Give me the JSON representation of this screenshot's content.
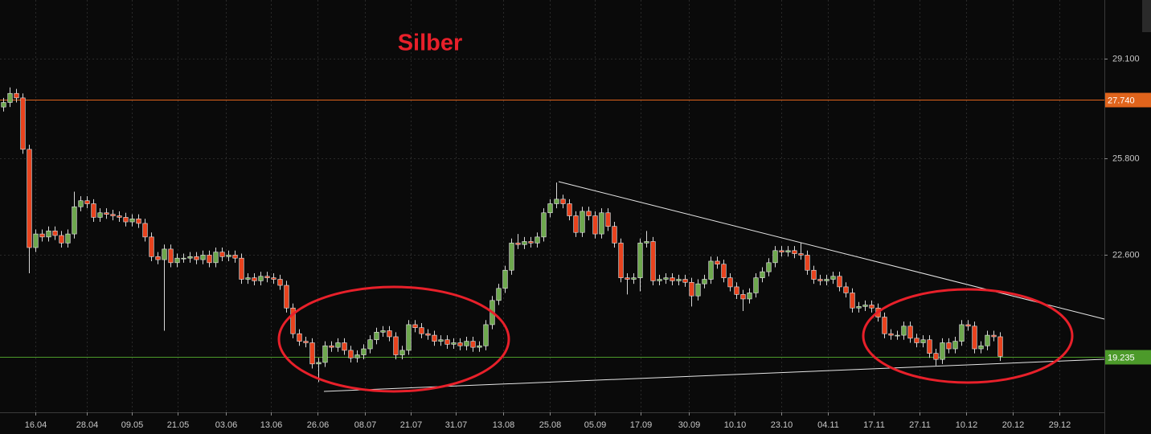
{
  "chart_data": {
    "type": "candlestick",
    "title": "Silber",
    "open": [
      27.5,
      27.65,
      27.95,
      27.8,
      26.1,
      22.85,
      23.3,
      23.2,
      23.4,
      23.25,
      23.0,
      23.3,
      24.2,
      24.4,
      24.3,
      23.85,
      24.0,
      23.95,
      23.9,
      23.85,
      23.7,
      23.8,
      23.65,
      23.2,
      22.55,
      22.45,
      22.8,
      22.35,
      22.5,
      22.5,
      22.55,
      22.45,
      22.6,
      22.35,
      22.7,
      22.55,
      22.6,
      22.5,
      21.8,
      21.85,
      21.75,
      21.9,
      21.85,
      21.8,
      21.6,
      20.85,
      20.0,
      19.75,
      19.7,
      19.0,
      19.05,
      19.6,
      19.55,
      19.7,
      19.45,
      19.2,
      19.3,
      19.5,
      19.8,
      20.05,
      20.1,
      19.9,
      19.3,
      19.45,
      20.3,
      20.2,
      20.0,
      19.95,
      19.75,
      19.8,
      19.65,
      19.7,
      19.6,
      19.75,
      19.55,
      19.6,
      20.3,
      21.1,
      21.5,
      22.1,
      23.0,
      22.95,
      23.05,
      23.0,
      23.2,
      24.0,
      24.3,
      24.45,
      24.3,
      23.9,
      23.35,
      24.05,
      23.9,
      23.3,
      24.0,
      23.55,
      23.0,
      21.85,
      21.8,
      21.85,
      23.0,
      23.05,
      21.75,
      21.8,
      21.85,
      21.75,
      21.8,
      21.7,
      21.25,
      21.65,
      21.8,
      22.4,
      22.3,
      21.85,
      21.55,
      21.3,
      21.15,
      21.35,
      21.85,
      22.05,
      22.35,
      22.75,
      22.7,
      22.75,
      22.65,
      22.6,
      22.1,
      21.8,
      21.75,
      21.8,
      21.9,
      21.55,
      21.35,
      20.85,
      20.9,
      20.95,
      20.85,
      20.55,
      20.0,
      19.95,
      19.95,
      20.25,
      19.85,
      19.7,
      19.8,
      19.35,
      19.15,
      19.7,
      19.5,
      19.75,
      20.3,
      20.25,
      19.5,
      19.6,
      19.95,
      19.9
    ],
    "high": [
      27.8,
      28.15,
      28.1,
      27.95,
      26.25,
      23.45,
      23.45,
      23.55,
      23.55,
      23.4,
      23.45,
      24.7,
      24.55,
      24.55,
      24.45,
      24.15,
      24.15,
      24.1,
      24.05,
      24.0,
      23.95,
      23.95,
      23.8,
      23.35,
      22.7,
      22.95,
      22.95,
      22.65,
      22.65,
      22.7,
      22.7,
      22.75,
      22.75,
      22.85,
      22.85,
      22.75,
      22.75,
      22.65,
      22.0,
      22.0,
      22.05,
      22.05,
      22.0,
      21.95,
      21.75,
      21.0,
      20.15,
      19.9,
      19.85,
      19.2,
      19.75,
      19.75,
      19.85,
      19.85,
      19.6,
      19.45,
      19.65,
      19.95,
      20.2,
      20.25,
      20.25,
      20.05,
      19.6,
      20.45,
      20.45,
      20.35,
      20.15,
      20.1,
      19.95,
      19.95,
      19.85,
      19.85,
      19.9,
      19.9,
      19.75,
      20.45,
      21.25,
      21.65,
      22.25,
      23.15,
      23.3,
      23.2,
      23.2,
      23.35,
      24.15,
      24.45,
      25.0,
      24.6,
      24.45,
      24.05,
      24.2,
      24.2,
      24.05,
      24.15,
      24.15,
      23.7,
      23.15,
      22.0,
      22.0,
      23.15,
      23.4,
      23.2,
      21.95,
      22.0,
      22.0,
      21.95,
      21.95,
      21.85,
      21.8,
      21.95,
      22.55,
      22.55,
      22.45,
      22.0,
      21.7,
      21.45,
      21.5,
      22.0,
      22.2,
      22.5,
      22.9,
      22.9,
      22.9,
      22.9,
      23.0,
      22.75,
      22.25,
      21.95,
      21.95,
      22.05,
      22.05,
      21.7,
      21.5,
      21.05,
      21.1,
      21.1,
      21.0,
      20.7,
      20.15,
      20.1,
      20.4,
      20.4,
      20.0,
      19.95,
      19.95,
      19.5,
      19.85,
      19.85,
      19.9,
      20.45,
      20.45,
      20.4,
      19.75,
      20.1,
      20.1,
      20.05
    ],
    "low": [
      27.35,
      27.5,
      27.65,
      25.95,
      22.0,
      22.7,
      23.05,
      23.05,
      23.1,
      22.85,
      22.85,
      23.15,
      24.05,
      24.15,
      23.7,
      23.7,
      23.8,
      23.75,
      23.7,
      23.55,
      23.55,
      23.5,
      23.05,
      22.4,
      22.3,
      20.1,
      22.2,
      22.2,
      22.35,
      22.35,
      22.3,
      22.3,
      22.2,
      22.2,
      22.4,
      22.4,
      22.35,
      21.65,
      21.65,
      21.6,
      21.6,
      21.7,
      21.65,
      21.45,
      20.7,
      19.85,
      19.6,
      19.55,
      18.85,
      18.4,
      18.9,
      19.4,
      19.4,
      19.3,
      19.05,
      19.05,
      19.15,
      19.35,
      19.65,
      19.9,
      19.75,
      19.15,
      19.15,
      19.3,
      20.05,
      19.85,
      19.8,
      19.6,
      19.6,
      19.5,
      19.5,
      19.45,
      19.45,
      19.4,
      19.4,
      19.45,
      20.15,
      20.95,
      21.35,
      21.95,
      22.8,
      22.8,
      22.85,
      22.85,
      23.05,
      23.85,
      24.15,
      24.15,
      23.75,
      23.2,
      23.2,
      23.75,
      23.15,
      23.15,
      23.4,
      22.85,
      21.7,
      21.3,
      21.65,
      21.4,
      22.85,
      21.6,
      21.6,
      21.65,
      21.6,
      21.6,
      21.55,
      20.9,
      21.1,
      21.5,
      21.65,
      22.15,
      21.7,
      21.4,
      21.15,
      20.75,
      21.0,
      21.2,
      21.7,
      21.9,
      22.2,
      22.55,
      22.55,
      22.5,
      22.45,
      21.95,
      21.65,
      21.6,
      21.6,
      21.65,
      21.4,
      21.2,
      20.7,
      20.7,
      20.75,
      20.7,
      20.4,
      19.85,
      19.8,
      19.8,
      19.8,
      19.7,
      19.55,
      19.55,
      19.2,
      18.95,
      19.0,
      19.35,
      19.35,
      19.6,
      20.1,
      19.35,
      19.35,
      19.45,
      19.75,
      19.1
    ],
    "close": [
      27.65,
      27.95,
      27.8,
      26.1,
      22.85,
      23.3,
      23.2,
      23.4,
      23.25,
      23.0,
      23.3,
      24.2,
      24.4,
      24.3,
      23.85,
      24.0,
      23.95,
      23.9,
      23.85,
      23.7,
      23.8,
      23.65,
      23.2,
      22.55,
      22.45,
      22.8,
      22.35,
      22.5,
      22.5,
      22.55,
      22.45,
      22.6,
      22.35,
      22.7,
      22.55,
      22.6,
      22.5,
      21.8,
      21.85,
      21.75,
      21.9,
      21.85,
      21.8,
      21.6,
      20.85,
      20.0,
      19.75,
      19.7,
      19.0,
      19.05,
      19.6,
      19.55,
      19.7,
      19.45,
      19.2,
      19.3,
      19.5,
      19.8,
      20.05,
      20.1,
      19.9,
      19.3,
      19.45,
      20.3,
      20.2,
      20.0,
      19.95,
      19.75,
      19.8,
      19.65,
      19.7,
      19.6,
      19.75,
      19.55,
      19.6,
      20.3,
      21.1,
      21.5,
      22.1,
      23.0,
      22.95,
      23.05,
      23.0,
      23.2,
      24.0,
      24.3,
      24.45,
      24.3,
      23.9,
      23.35,
      24.05,
      23.9,
      23.3,
      24.0,
      23.55,
      23.0,
      21.85,
      21.8,
      21.85,
      23.0,
      23.05,
      21.75,
      21.8,
      21.85,
      21.75,
      21.8,
      21.7,
      21.25,
      21.65,
      21.8,
      22.4,
      22.3,
      21.85,
      21.55,
      21.3,
      21.15,
      21.35,
      21.85,
      22.05,
      22.35,
      22.75,
      22.7,
      22.75,
      22.65,
      22.6,
      22.1,
      21.8,
      21.75,
      21.8,
      21.9,
      21.55,
      21.35,
      20.85,
      20.9,
      20.95,
      20.85,
      20.55,
      20.0,
      19.95,
      19.95,
      20.25,
      19.85,
      19.7,
      19.8,
      19.35,
      19.15,
      19.7,
      19.5,
      19.75,
      20.3,
      20.25,
      19.5,
      19.6,
      19.95,
      19.9,
      19.25
    ],
    "up_color": "#6ea84e",
    "down_color": "#e8431e",
    "ylim": [
      17.4,
      31.04
    ],
    "yticks": [
      {
        "value": 22.6,
        "label": "22.600"
      },
      {
        "value": 25.8,
        "label": "25.800"
      },
      {
        "value": 29.1,
        "label": "29.100"
      }
    ],
    "xlim": [
      -0.5,
      171.25
    ],
    "xticks": [
      {
        "value": 5,
        "label": "16.04"
      },
      {
        "value": 13,
        "label": "28.04"
      },
      {
        "value": 20,
        "label": "09.05"
      },
      {
        "value": 27.125,
        "label": "21.05"
      },
      {
        "value": 34.625,
        "label": "03.06"
      },
      {
        "value": 41.625,
        "label": "13.06"
      },
      {
        "value": 48.875,
        "label": "26.06"
      },
      {
        "value": 56.25,
        "label": "08.07"
      },
      {
        "value": 63.375,
        "label": "21.07"
      },
      {
        "value": 70.375,
        "label": "31.07"
      },
      {
        "value": 77.75,
        "label": "13.08"
      },
      {
        "value": 85,
        "label": "25.08"
      },
      {
        "value": 92,
        "label": "05.09"
      },
      {
        "value": 99.125,
        "label": "17.09"
      },
      {
        "value": 106.625,
        "label": "30.09"
      },
      {
        "value": 113.75,
        "label": "10.10"
      },
      {
        "value": 121,
        "label": "23.10"
      },
      {
        "value": 128.25,
        "label": "04.11"
      },
      {
        "value": 135.375,
        "label": "17.11"
      },
      {
        "value": 142.5,
        "label": "27.11"
      },
      {
        "value": 149.75,
        "label": "10.12"
      },
      {
        "value": 157,
        "label": "20.12"
      },
      {
        "value": 164.25,
        "label": "29.12"
      }
    ],
    "levels": [
      {
        "value": 27.74,
        "label": "27.740",
        "color": "#e0641c"
      },
      {
        "value": 19.235,
        "label": "19.235",
        "color": "#4c9a2a"
      }
    ],
    "grid": true
  }
}
